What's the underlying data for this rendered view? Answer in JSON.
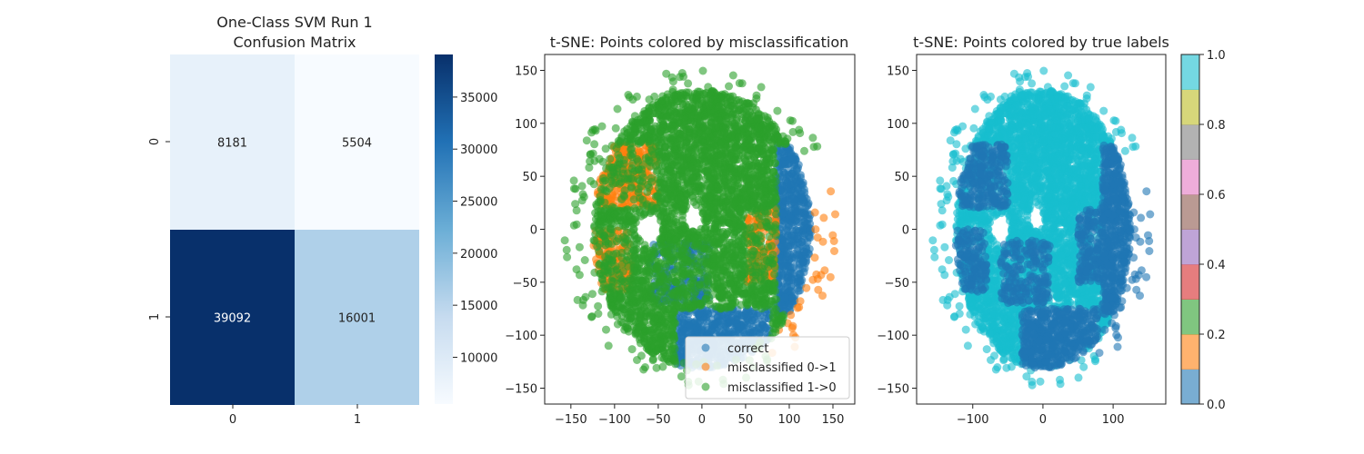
{
  "chart_data": [
    {
      "type": "heatmap",
      "title_lines": [
        "One-Class SVM Run 1",
        "Confusion Matrix"
      ],
      "x_tick_labels": [
        "0",
        "1"
      ],
      "y_tick_labels": [
        "0",
        "1"
      ],
      "matrix": [
        [
          8181,
          5504
        ],
        [
          39092,
          16001
        ]
      ],
      "cell_labels": [
        [
          "8181",
          "5504"
        ],
        [
          "39092",
          "16001"
        ]
      ],
      "colormap": "Blues",
      "colorbar": {
        "range": [
          5504,
          39092
        ],
        "ticks": [
          10000,
          15000,
          20000,
          25000,
          30000,
          35000
        ],
        "tick_labels": [
          "10000",
          "15000",
          "20000",
          "25000",
          "30000",
          "35000"
        ]
      }
    },
    {
      "type": "scatter",
      "title": "t-SNE: Points colored by misclassification",
      "xlim": [
        -180,
        175
      ],
      "ylim": [
        -165,
        165
      ],
      "x_ticks": [
        -150,
        -100,
        -50,
        0,
        50,
        100,
        150
      ],
      "x_tick_labels": [
        "−150",
        "−100",
        "−50",
        "0",
        "50",
        "100",
        "150"
      ],
      "y_ticks": [
        -150,
        -100,
        -50,
        0,
        50,
        100,
        150
      ],
      "y_tick_labels": [
        "−150",
        "−100",
        "−50",
        "0",
        "50",
        "100",
        "150"
      ],
      "legend_position": "lower right",
      "series": [
        {
          "name": "correct",
          "color": "#1f77b4"
        },
        {
          "name": "misclassified 0->1",
          "color": "#ff7f0e"
        },
        {
          "name": "misclassified 1->0",
          "color": "#2ca02c"
        }
      ]
    },
    {
      "type": "scatter",
      "title": "t-SNE: Points colored by true labels",
      "xlim": [
        -180,
        175
      ],
      "ylim": [
        -165,
        165
      ],
      "x_ticks": [
        -100,
        0,
        100
      ],
      "x_tick_labels": [
        "−100",
        "0",
        "100"
      ],
      "y_ticks": [
        -150,
        -100,
        -50,
        0,
        50,
        100,
        150
      ],
      "y_tick_labels": [
        "−150",
        "−100",
        "−50",
        "0",
        "50",
        "100",
        "150"
      ],
      "label_colors": {
        "0": "#1f77b4",
        "1": "#17becf"
      },
      "colormap": "tab10",
      "colorbar": {
        "range": [
          0.0,
          1.0
        ],
        "ticks": [
          0.0,
          0.2,
          0.4,
          0.6,
          0.8,
          1.0
        ],
        "tick_labels": [
          "0.0",
          "0.2",
          "0.4",
          "0.6",
          "0.8",
          "1.0"
        ],
        "colors": [
          "#1f77b4",
          "#ff7f0e",
          "#2ca02c",
          "#d62728",
          "#9467bd",
          "#8c564b",
          "#e377c2",
          "#7f7f7f",
          "#bcbd22",
          "#17becf"
        ]
      }
    }
  ]
}
